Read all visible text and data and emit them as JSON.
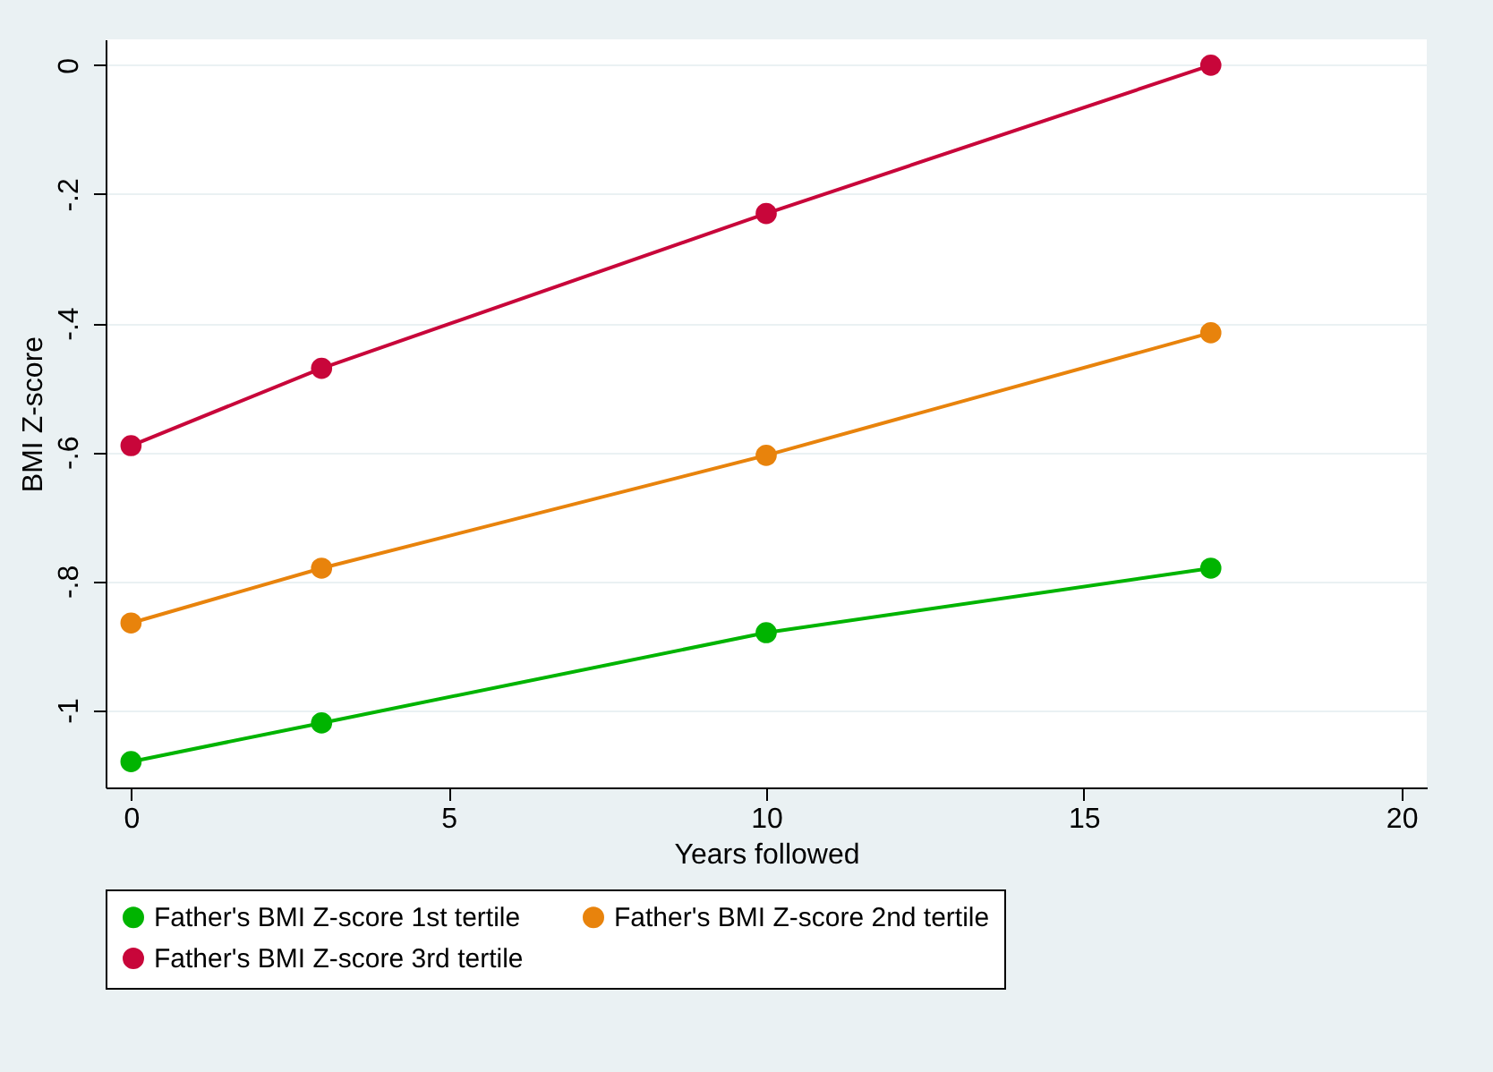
{
  "chart_data": {
    "type": "line",
    "xlabel": "Years followed",
    "ylabel": "BMI Z-score",
    "x": [
      0,
      3,
      10,
      17
    ],
    "series": [
      {
        "name": "Father's BMI Z-score 1st tertile",
        "color": "#00b400",
        "values": [
          -1.08,
          -1.02,
          -0.88,
          -0.78
        ]
      },
      {
        "name": "Father's BMI Z-score 2nd tertile",
        "color": "#e8830c",
        "values": [
          -0.865,
          -0.78,
          -0.605,
          -0.415
        ]
      },
      {
        "name": "Father's BMI Z-score 3rd tertile",
        "color": "#c8063a",
        "values": [
          -0.59,
          -0.47,
          -0.23,
          0
        ]
      }
    ],
    "xlim": [
      -0.4,
      20.4
    ],
    "xticks": [
      0,
      5,
      10,
      15,
      20
    ],
    "ylim": [
      -1.12,
      0.04
    ],
    "yticks": [
      {
        "value": -1,
        "label": "-1"
      },
      {
        "value": -0.8,
        "label": "-.8"
      },
      {
        "value": -0.6,
        "label": "-.6"
      },
      {
        "value": -0.4,
        "label": "-.4"
      },
      {
        "value": -0.2,
        "label": "-.2"
      },
      {
        "value": 0,
        "label": "0"
      }
    ],
    "grid": "y",
    "legend": "bottom",
    "marker": "circle",
    "line_style": "solid"
  }
}
